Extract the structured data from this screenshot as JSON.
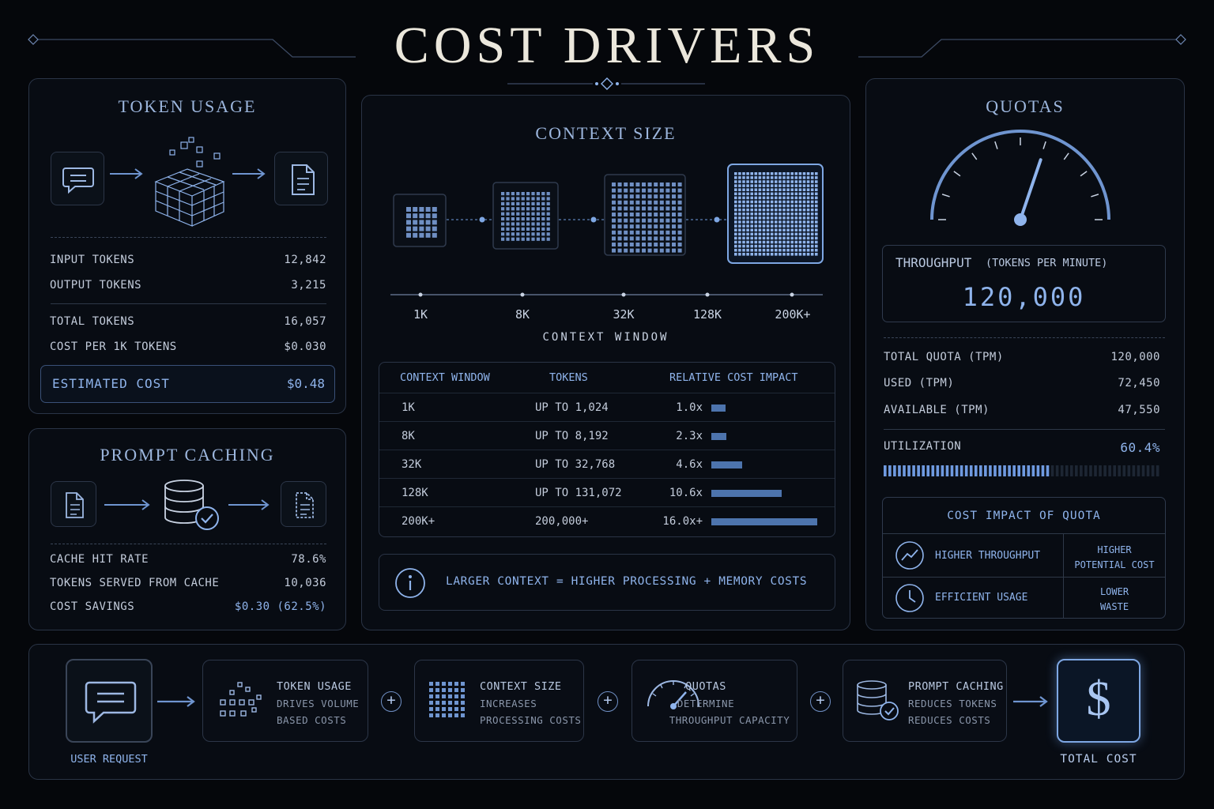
{
  "page_title": "COST DRIVERS",
  "token_usage": {
    "title": "TOKEN USAGE",
    "rows": [
      {
        "label": "INPUT TOKENS",
        "value": "12,842"
      },
      {
        "label": "OUTPUT TOKENS",
        "value": "3,215"
      },
      {
        "label": "TOTAL TOKENS",
        "value": "16,057"
      },
      {
        "label": "COST PER 1K TOKENS",
        "value": "$0.030"
      }
    ],
    "estimated_label": "ESTIMATED COST",
    "estimated_value": "$0.48"
  },
  "prompt_caching": {
    "title": "PROMPT CACHING",
    "rows": [
      {
        "label": "CACHE HIT RATE",
        "value": "78.6%"
      },
      {
        "label": "TOKENS SERVED FROM CACHE",
        "value": "10,036"
      },
      {
        "label": "COST SAVINGS",
        "value": "$0.30 (62.5%)"
      }
    ]
  },
  "context_size": {
    "title": "CONTEXT SIZE",
    "ticks": [
      "1K",
      "8K",
      "32K",
      "128K",
      "200K+"
    ],
    "axis_label": "CONTEXT WINDOW",
    "table": {
      "headers": [
        "CONTEXT WINDOW",
        "TOKENS",
        "RELATIVE COST IMPACT"
      ],
      "rows": [
        {
          "window": "1K",
          "tokens": "UP TO 1,024",
          "impact": "1.0x",
          "impact_value": 1.0
        },
        {
          "window": "8K",
          "tokens": "UP TO 8,192",
          "impact": "2.3x",
          "impact_value": 2.3
        },
        {
          "window": "32K",
          "tokens": "UP TO 32,768",
          "impact": "4.6x",
          "impact_value": 4.6
        },
        {
          "window": "128K",
          "tokens": "UP TO 131,072",
          "impact": "10.6x",
          "impact_value": 10.6
        },
        {
          "window": "200K+",
          "tokens": "200,000+",
          "impact": "16.0x+",
          "impact_value": 16.0
        }
      ]
    },
    "note": "LARGER CONTEXT = HIGHER PROCESSING + MEMORY COSTS"
  },
  "quotas": {
    "title": "QUOTAS",
    "gauge_fraction": 0.604,
    "throughput_label": "THROUGHPUT",
    "throughput_unit": "(TOKENS PER MINUTE)",
    "throughput_value": "120,000",
    "rows": [
      {
        "label": "TOTAL QUOTA (TPM)",
        "value": "120,000"
      },
      {
        "label": "USED (TPM)",
        "value": "72,450"
      },
      {
        "label": "AVAILABLE (TPM)",
        "value": "47,550"
      }
    ],
    "utilization_label": "UTILIZATION",
    "utilization_value": "60.4%",
    "utilization_fraction": 0.604,
    "impact_title": "COST IMPACT OF QUOTA",
    "impact_rows": [
      {
        "label": "HIGHER THROUGHPUT",
        "effect_line1": "HIGHER",
        "effect_line2": "POTENTIAL COST",
        "icon": "trend-icon"
      },
      {
        "label": "EFFICIENT USAGE",
        "effect_line1": "LOWER",
        "effect_line2": "WASTE",
        "icon": "clock-icon"
      }
    ]
  },
  "flow": {
    "user_request": "USER REQUEST",
    "total_cost": "TOTAL COST",
    "steps": [
      {
        "title": "TOKEN USAGE",
        "line1": "DRIVES VOLUME",
        "line2": "BASED COSTS"
      },
      {
        "title": "CONTEXT SIZE",
        "line1": "INCREASES",
        "line2": "PROCESSING COSTS"
      },
      {
        "title": "QUOTAS",
        "line1": "DETERMINE",
        "line2": "THROUGHPUT CAPACITY"
      },
      {
        "title": "PROMPT CACHING",
        "line1": "REDUCES TOKENS",
        "line2": "REDUCES COSTS"
      }
    ]
  },
  "colors": {
    "accent": "#8fb4ec",
    "bar": "#4d74ad",
    "background": "#05070b"
  }
}
